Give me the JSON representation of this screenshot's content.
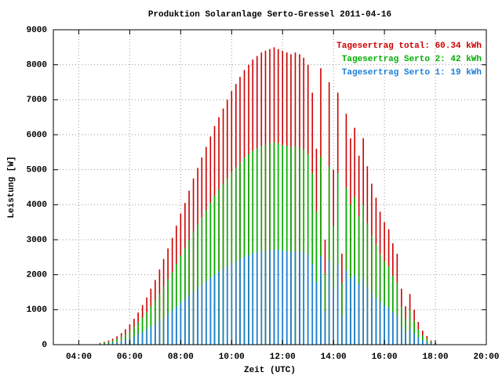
{
  "chart_data": {
    "type": "impulse",
    "title": "Produktion Solaranlage Serto-Gressel 2011-04-16",
    "x_label": "Zeit (UTC)",
    "y_label": "Leistung [W]",
    "x": [
      4.83,
      5,
      5.17,
      5.33,
      5.5,
      5.67,
      5.83,
      6,
      6.17,
      6.33,
      6.5,
      6.67,
      6.83,
      7,
      7.17,
      7.33,
      7.5,
      7.67,
      7.83,
      8,
      8.17,
      8.33,
      8.5,
      8.67,
      8.83,
      9,
      9.17,
      9.33,
      9.5,
      9.67,
      9.83,
      10,
      10.17,
      10.33,
      10.5,
      10.67,
      10.83,
      11,
      11.17,
      11.33,
      11.5,
      11.67,
      11.83,
      12,
      12.17,
      12.33,
      12.5,
      12.67,
      12.83,
      13,
      13.17,
      13.33,
      13.5,
      13.67,
      13.83,
      14,
      14.17,
      14.33,
      14.5,
      14.67,
      14.83,
      15,
      15.17,
      15.33,
      15.5,
      15.67,
      15.83,
      16,
      16.17,
      16.33,
      16.5,
      16.67,
      16.83,
      17,
      17.17,
      17.33,
      17.5,
      17.67,
      17.83,
      18
    ],
    "series": [
      {
        "name": "Tagesertrag total: 60.34 kWh",
        "color": "#cc0000",
        "values": [
          50,
          80,
          120,
          170,
          240,
          330,
          440,
          580,
          740,
          920,
          1130,
          1350,
          1600,
          1850,
          2150,
          2450,
          2750,
          3050,
          3400,
          3750,
          4050,
          4400,
          4750,
          5050,
          5350,
          5650,
          5950,
          6250,
          6500,
          6750,
          7000,
          7250,
          7450,
          7650,
          7850,
          8000,
          8150,
          8250,
          8350,
          8400,
          8450,
          8500,
          8450,
          8400,
          8350,
          8300,
          8350,
          8300,
          8200,
          8000,
          7200,
          5600,
          7900,
          3000,
          7500,
          5000,
          7200,
          2600,
          6600,
          5900,
          6200,
          5400,
          5900,
          5100,
          4600,
          4200,
          3800,
          3500,
          3300,
          2900,
          2600,
          1600,
          1100,
          1450,
          1000,
          650,
          400,
          250,
          120,
          60
        ]
      },
      {
        "name": "Tagesertrag Serto 2: 42 kWh",
        "color": "#00b000",
        "values": [
          35,
          55,
          80,
          115,
          165,
          225,
          300,
          395,
          505,
          625,
          770,
          920,
          1090,
          1260,
          1460,
          1670,
          1870,
          2070,
          2310,
          2550,
          2750,
          2990,
          3230,
          3430,
          3640,
          3840,
          4050,
          4250,
          4420,
          4590,
          4760,
          4930,
          5070,
          5200,
          5340,
          5440,
          5540,
          5610,
          5680,
          5710,
          5750,
          5780,
          5750,
          5710,
          5680,
          5640,
          5680,
          5640,
          5580,
          5440,
          4900,
          3810,
          5370,
          2040,
          5100,
          3400,
          4900,
          1770,
          4490,
          4010,
          4220,
          3670,
          4010,
          3470,
          3130,
          2860,
          2580,
          2380,
          2240,
          1970,
          1770,
          1090,
          750,
          990,
          680,
          440,
          270,
          170,
          80,
          40
        ]
      },
      {
        "name": "Tagesertrag Serto 1: 19 kWh",
        "color": "#1a7fdc",
        "values": [
          15,
          25,
          40,
          55,
          75,
          105,
          140,
          185,
          235,
          295,
          360,
          430,
          510,
          590,
          690,
          780,
          880,
          980,
          1090,
          1200,
          1300,
          1410,
          1520,
          1620,
          1710,
          1810,
          1900,
          2000,
          2080,
          2160,
          2240,
          2320,
          2380,
          2450,
          2510,
          2560,
          2610,
          2640,
          2670,
          2690,
          2700,
          2720,
          2700,
          2690,
          2670,
          2660,
          2670,
          2660,
          2620,
          2560,
          2300,
          1790,
          2530,
          960,
          2400,
          1600,
          2300,
          830,
          2110,
          1890,
          1980,
          1730,
          1890,
          1630,
          1470,
          1340,
          1220,
          1120,
          1060,
          930,
          830,
          510,
          350,
          460,
          320,
          210,
          130,
          80,
          40,
          20
        ]
      }
    ],
    "xlim": [
      3,
      20
    ],
    "xticks": [
      {
        "value": 4,
        "label": "04:00"
      },
      {
        "value": 6,
        "label": "06:00"
      },
      {
        "value": 8,
        "label": "08:00"
      },
      {
        "value": 10,
        "label": "10:00"
      },
      {
        "value": 12,
        "label": "12:00"
      },
      {
        "value": 14,
        "label": "14:00"
      },
      {
        "value": 16,
        "label": "16:00"
      },
      {
        "value": 18,
        "label": "18:00"
      },
      {
        "value": 20,
        "label": "20:00"
      }
    ],
    "ylim": [
      0,
      9000
    ],
    "yticks": [
      0,
      1000,
      2000,
      3000,
      4000,
      5000,
      6000,
      7000,
      8000,
      9000
    ],
    "grid": true,
    "legend": "top-right"
  }
}
